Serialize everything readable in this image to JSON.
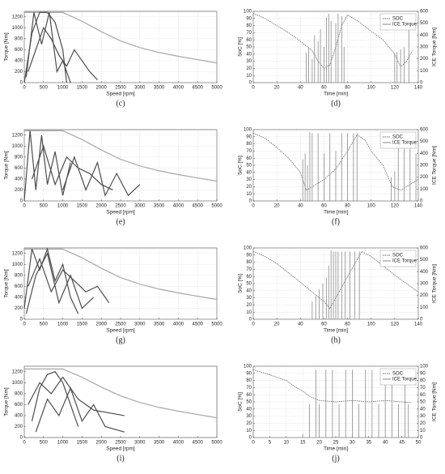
{
  "chart_data": [
    {
      "type": "line",
      "caption": "(c)",
      "xlabel": "Speed [rpm]",
      "ylabel": "Torque [Nm]",
      "grid": true,
      "xlim": [
        0,
        5000
      ],
      "xticks": [
        0,
        500,
        1000,
        1500,
        2000,
        2500,
        3000,
        3500,
        4000,
        4500,
        5000
      ],
      "ylim": [
        0,
        1300
      ],
      "yticks": [
        0,
        200,
        400,
        600,
        800,
        1000,
        1200
      ],
      "series": [
        {
          "style": "line",
          "color": "#a8a8a8",
          "x": [
            0,
            1000,
            1500,
            2000,
            2500,
            3000,
            3500,
            4000,
            4500,
            5000
          ],
          "values": [
            1280,
            1280,
            1120,
            930,
            760,
            640,
            550,
            480,
            420,
            360
          ]
        },
        {
          "style": "line",
          "color": "#4d4d4d",
          "x": [
            0,
            200,
            400,
            600,
            800,
            1000,
            1100
          ],
          "values": [
            0,
            900,
            1280,
            1280,
            1100,
            600,
            0
          ]
        },
        {
          "style": "line",
          "color": "#4d4d4d",
          "x": [
            100,
            300,
            500,
            700,
            900,
            1100,
            1300,
            1500,
            1700,
            1900
          ],
          "values": [
            200,
            600,
            1000,
            800,
            500,
            300,
            600,
            400,
            200,
            50
          ]
        },
        {
          "style": "line",
          "color": "#4d4d4d",
          "x": [
            50,
            250,
            450,
            650,
            850,
            1000,
            1200
          ],
          "values": [
            100,
            1280,
            700,
            1280,
            200,
            400,
            0
          ]
        }
      ]
    },
    {
      "type": "line",
      "caption": "(d)",
      "xlabel": "Time [min]",
      "ylabel": "SoC [%]",
      "y2label": "ICE Torque [Nm]",
      "grid": true,
      "legend": "upper right",
      "xlim": [
        0,
        140
      ],
      "xticks": [
        0,
        20,
        40,
        60,
        80,
        100,
        120,
        140
      ],
      "ylim": [
        0,
        100
      ],
      "yticks": [
        0,
        10,
        20,
        30,
        40,
        50,
        60,
        70,
        80,
        90,
        100
      ],
      "y2lim": [
        0,
        600
      ],
      "y2ticks": [
        0,
        100,
        200,
        300,
        400,
        500,
        600
      ],
      "series": [
        {
          "name": "SOC",
          "style": "line",
          "color": "#666666",
          "x": [
            0,
            10,
            20,
            30,
            40,
            50,
            55,
            60,
            65,
            70,
            75,
            80,
            90,
            100,
            110,
            120,
            125,
            130,
            135
          ],
          "values": [
            97,
            90,
            80,
            70,
            58,
            45,
            30,
            20,
            25,
            50,
            80,
            95,
            85,
            72,
            60,
            40,
            22,
            30,
            45
          ]
        },
        {
          "name": "ICE Torque",
          "axis": "y2",
          "style": "stem",
          "color": "#8a8a8a",
          "x": [
            45,
            47,
            50,
            52,
            55,
            57,
            60,
            62,
            64,
            66,
            70,
            72,
            75,
            77,
            120,
            122,
            125,
            128,
            132
          ],
          "values": [
            250,
            300,
            200,
            400,
            350,
            450,
            300,
            550,
            580,
            520,
            500,
            580,
            560,
            300,
            250,
            260,
            280,
            300,
            520
          ]
        }
      ]
    },
    {
      "type": "line",
      "caption": "(e)",
      "xlabel": "Speed [rpm]",
      "ylabel": "Torque [Nm]",
      "grid": true,
      "xlim": [
        0,
        5000
      ],
      "xticks": [
        0,
        500,
        1000,
        1500,
        2000,
        2500,
        3000,
        3500,
        4000,
        4500,
        5000
      ],
      "ylim": [
        0,
        1300
      ],
      "yticks": [
        0,
        200,
        400,
        600,
        800,
        1000,
        1200
      ],
      "series": [
        {
          "style": "line",
          "color": "#a8a8a8",
          "x": [
            0,
            1000,
            1500,
            2000,
            2500,
            3000,
            3500,
            4000,
            4500,
            5000
          ],
          "values": [
            1280,
            1280,
            1120,
            930,
            760,
            640,
            550,
            480,
            420,
            360
          ]
        },
        {
          "style": "line",
          "color": "#4d4d4d",
          "x": [
            0,
            150,
            300,
            450,
            600,
            800,
            1000,
            1200
          ],
          "values": [
            0,
            1280,
            200,
            1200,
            300,
            900,
            100,
            700
          ]
        },
        {
          "style": "line",
          "color": "#4d4d4d",
          "x": [
            1000,
            1300,
            1600,
            1900,
            2100,
            2400,
            2700,
            3000
          ],
          "values": [
            200,
            800,
            200,
            700,
            100,
            500,
            100,
            300
          ]
        },
        {
          "style": "line",
          "color": "#4d4d4d",
          "x": [
            200,
            500,
            800,
            1100,
            1400,
            1700,
            2000,
            2300
          ],
          "values": [
            400,
            1000,
            300,
            800,
            600,
            500,
            300,
            200
          ]
        }
      ]
    },
    {
      "type": "line",
      "caption": "(f)",
      "xlabel": "Time [min]",
      "ylabel": "SoC [%]",
      "y2label": "ICE Torque [Nm]",
      "grid": true,
      "legend": "upper right",
      "xlim": [
        0,
        140
      ],
      "xticks": [
        0,
        20,
        40,
        60,
        80,
        100,
        120,
        140
      ],
      "ylim": [
        0,
        100
      ],
      "yticks": [
        0,
        10,
        20,
        30,
        40,
        50,
        60,
        70,
        80,
        90,
        100
      ],
      "y2lim": [
        0,
        600
      ],
      "y2ticks": [
        0,
        100,
        200,
        300,
        400,
        500,
        600
      ],
      "series": [
        {
          "name": "SOC",
          "style": "line",
          "color": "#666666",
          "x": [
            0,
            10,
            20,
            30,
            40,
            45,
            50,
            60,
            70,
            80,
            88,
            95,
            100,
            110,
            118,
            125,
            132,
            140
          ],
          "values": [
            95,
            88,
            75,
            60,
            40,
            15,
            20,
            30,
            45,
            70,
            93,
            85,
            70,
            50,
            20,
            15,
            22,
            30
          ]
        },
        {
          "name": "ICE Torque",
          "axis": "y2",
          "style": "stem",
          "color": "#8a8a8a",
          "x": [
            42,
            44,
            46,
            48,
            50,
            55,
            60,
            65,
            70,
            75,
            80,
            85,
            88,
            117,
            120,
            123,
            128,
            133,
            138
          ],
          "values": [
            350,
            400,
            300,
            580,
            570,
            570,
            400,
            570,
            420,
            570,
            570,
            570,
            570,
            200,
            250,
            570,
            570,
            570,
            400
          ]
        }
      ]
    },
    {
      "type": "line",
      "caption": "(g)",
      "xlabel": "Speed [rpm]",
      "ylabel": "Torque [Nm]",
      "grid": true,
      "xlim": [
        0,
        5000
      ],
      "xticks": [
        0,
        500,
        1000,
        1500,
        2000,
        2500,
        3000,
        3500,
        4000,
        4500,
        5000
      ],
      "ylim": [
        0,
        1300
      ],
      "yticks": [
        0,
        200,
        400,
        600,
        800,
        1000,
        1200
      ],
      "series": [
        {
          "style": "line",
          "color": "#a8a8a8",
          "x": [
            0,
            1000,
            1500,
            2000,
            2500,
            3000,
            3500,
            4000,
            4500,
            5000
          ],
          "values": [
            1280,
            1280,
            1120,
            930,
            760,
            640,
            550,
            480,
            420,
            360
          ]
        },
        {
          "style": "line",
          "color": "#4d4d4d",
          "x": [
            0,
            200,
            400,
            600,
            800,
            1000,
            1200,
            1400
          ],
          "values": [
            200,
            1280,
            900,
            1280,
            700,
            1000,
            400,
            100
          ]
        },
        {
          "style": "line",
          "color": "#4d4d4d",
          "x": [
            100,
            400,
            700,
            1000,
            1300,
            1600,
            1900,
            2200
          ],
          "values": [
            600,
            1100,
            500,
            900,
            700,
            500,
            600,
            300
          ]
        },
        {
          "style": "line",
          "color": "#4d4d4d",
          "x": [
            50,
            300,
            600,
            900,
            1200,
            1500,
            1800
          ],
          "values": [
            100,
            800,
            1200,
            300,
            800,
            200,
            400
          ]
        }
      ]
    },
    {
      "type": "line",
      "caption": "(h)",
      "xlabel": "Time [min]",
      "ylabel": "SoC [%]",
      "y2label": "ICE Torque [Nm]",
      "grid": true,
      "legend": "upper right",
      "xlim": [
        0,
        140
      ],
      "xticks": [
        0,
        20,
        40,
        60,
        80,
        100,
        120,
        140
      ],
      "ylim": [
        0,
        100
      ],
      "yticks": [
        0,
        10,
        20,
        30,
        40,
        50,
        60,
        70,
        80,
        90,
        100
      ],
      "y2lim": [
        0,
        600
      ],
      "y2ticks": [
        0,
        100,
        200,
        300,
        400,
        500,
        600
      ],
      "series": [
        {
          "name": "SOC",
          "style": "line",
          "color": "#666666",
          "x": [
            0,
            10,
            20,
            30,
            40,
            50,
            60,
            65,
            70,
            80,
            92,
            100,
            110,
            120,
            130,
            140
          ],
          "values": [
            95,
            88,
            78,
            65,
            52,
            38,
            25,
            15,
            30,
            60,
            95,
            88,
            75,
            62,
            50,
            38
          ]
        },
        {
          "name": "ICE Torque",
          "axis": "y2",
          "style": "stem",
          "color": "#8a8a8a",
          "x": [
            50,
            53,
            56,
            59,
            62,
            64,
            66,
            68,
            70,
            72,
            75,
            78,
            82,
            86,
            90
          ],
          "values": [
            150,
            200,
            250,
            300,
            350,
            450,
            580,
            570,
            570,
            570,
            570,
            570,
            570,
            570,
            570
          ]
        }
      ]
    },
    {
      "type": "line",
      "caption": "(i)",
      "xlabel": "Speed [rpm]",
      "ylabel": "Torque [Nm]",
      "grid": false,
      "xlim": [
        0,
        5000
      ],
      "xticks": [
        0,
        500,
        1000,
        1500,
        2000,
        2500,
        3000,
        3500,
        4000,
        4500,
        5000
      ],
      "ylim": [
        0,
        1300
      ],
      "yticks": [
        0,
        200,
        400,
        600,
        800,
        1000,
        1200
      ],
      "series": [
        {
          "style": "line",
          "color": "#a8a8a8",
          "x": [
            0,
            1000,
            1500,
            2000,
            2500,
            3000,
            3500,
            4000,
            4500,
            5000
          ],
          "values": [
            1250,
            1250,
            1100,
            920,
            760,
            640,
            550,
            480,
            420,
            360
          ]
        },
        {
          "style": "line",
          "color": "#4d4d4d",
          "x": [
            200,
            400,
            600,
            800,
            1000,
            1200,
            1400
          ],
          "values": [
            300,
            900,
            1150,
            1200,
            1000,
            600,
            200
          ]
        },
        {
          "style": "line",
          "color": "#4d4d4d",
          "x": [
            100,
            400,
            700,
            1000,
            1400,
            1800,
            2200,
            2600
          ],
          "values": [
            600,
            1000,
            800,
            1100,
            700,
            500,
            450,
            400
          ]
        },
        {
          "style": "line",
          "color": "#4d4d4d",
          "x": [
            300,
            600,
            900,
            1200,
            1500,
            1800,
            2100,
            2600
          ],
          "values": [
            100,
            700,
            400,
            900,
            300,
            600,
            200,
            100
          ]
        }
      ]
    },
    {
      "type": "line",
      "caption": "(j)",
      "xlabel": "Time [min]",
      "ylabel": "SoC [%]",
      "y2label": "ICE Torque [Nm]",
      "grid": true,
      "legend": "upper right",
      "xlim": [
        0,
        50
      ],
      "xticks": [
        0,
        5,
        10,
        15,
        20,
        25,
        30,
        35,
        40,
        45,
        50
      ],
      "ylim": [
        0,
        100
      ],
      "yticks": [
        0,
        10,
        20,
        30,
        40,
        50,
        60,
        70,
        80,
        90,
        100
      ],
      "y2lim": [
        0,
        100
      ],
      "y2ticks": [
        0,
        10,
        20,
        30,
        40,
        50,
        60,
        70,
        80,
        90,
        100
      ],
      "series": [
        {
          "name": "SOC",
          "style": "line",
          "color": "#666666",
          "x": [
            0,
            5,
            10,
            13,
            15,
            17,
            20,
            25,
            30,
            35,
            40,
            45,
            48
          ],
          "values": [
            95,
            88,
            80,
            70,
            65,
            58,
            52,
            50,
            52,
            50,
            52,
            50,
            49
          ]
        },
        {
          "name": "ICE Torque",
          "axis": "y2",
          "style": "stem",
          "color": "#8a8a8a",
          "x": [
            15,
            17,
            19,
            20,
            22,
            24,
            26,
            28,
            30,
            32,
            34,
            36,
            38,
            40,
            42,
            44,
            46,
            47
          ],
          "values": [
            5,
            47,
            95,
            47,
            95,
            95,
            47,
            95,
            95,
            47,
            95,
            95,
            47,
            95,
            95,
            47,
            95,
            47
          ]
        }
      ]
    }
  ]
}
